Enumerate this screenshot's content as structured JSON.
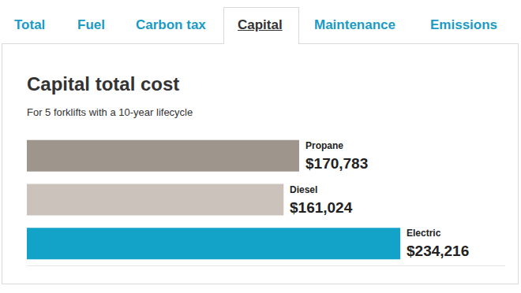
{
  "tabs": [
    "Total",
    "Fuel",
    "Carbon tax",
    "Capital",
    "Maintenance",
    "Emissions"
  ],
  "selected_tab": "Capital",
  "chart_data": {
    "type": "bar",
    "orientation": "horizontal",
    "title": "Capital total cost",
    "subtitle": "For 5 forklifts with a 10-year lifecycle",
    "categories": [
      "Propane",
      "Diesel",
      "Electric"
    ],
    "values": [
      170783,
      161024,
      234216
    ],
    "value_labels": [
      "$170,783",
      "$161,024",
      "$234,216"
    ],
    "colors": [
      "#9e958c",
      "#cbc3bb",
      "#13a3c8"
    ],
    "xlim": [
      0,
      300000
    ],
    "data_labels": true,
    "tick_labels": false,
    "grid": false
  }
}
